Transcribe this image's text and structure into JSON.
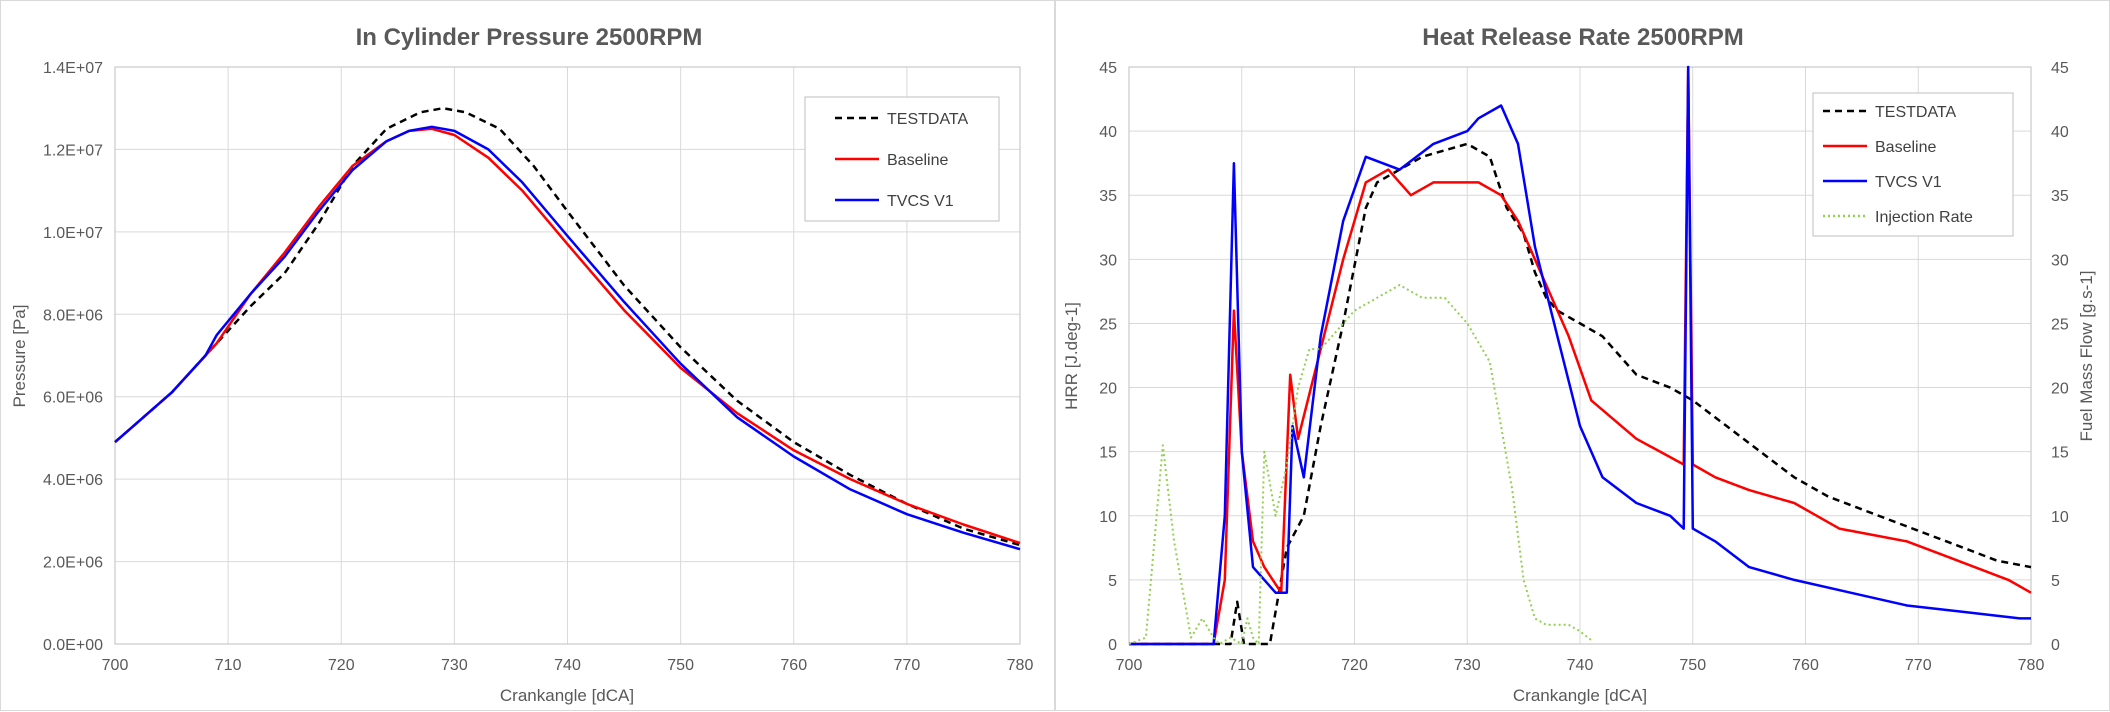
{
  "chart_data": [
    {
      "type": "line",
      "title": "In Cylinder Pressure 2500RPM",
      "xlabel": "Crankangle [dCA]",
      "ylabel": "Pressure [Pa]",
      "xlim": [
        700,
        780
      ],
      "ylim": [
        0,
        14000000
      ],
      "x_ticks": [
        "700",
        "710",
        "720",
        "730",
        "740",
        "750",
        "760",
        "770",
        "780"
      ],
      "y_ticks": [
        "0.0E+00",
        "2.0E+06",
        "4.0E+06",
        "6.0E+06",
        "8.0E+06",
        "1.0E+07",
        "1.2E+07",
        "1.4E+07"
      ],
      "grid": true,
      "legend_position": "top-right",
      "series": [
        {
          "name": "TESTDATA",
          "color": "#000000",
          "style": "dashed",
          "x": [
            700,
            705,
            708,
            709,
            712,
            715,
            718,
            721,
            724,
            727,
            729,
            731,
            734,
            737,
            740,
            745,
            750,
            755,
            760,
            765,
            770,
            775,
            780
          ],
          "y": [
            4900000,
            6100000,
            7000000,
            7300000,
            8200000,
            9000000,
            10200000,
            11600000,
            12500000,
            12900000,
            13000000,
            12900000,
            12500000,
            11600000,
            10500000,
            8700000,
            7200000,
            5900000,
            4900000,
            4100000,
            3400000,
            2800000,
            2400000
          ]
        },
        {
          "name": "Baseline",
          "color": "#ff0000",
          "style": "solid",
          "x": [
            700,
            705,
            708,
            709,
            712,
            715,
            718,
            721,
            724,
            726,
            728,
            730,
            733,
            736,
            740,
            745,
            750,
            755,
            760,
            765,
            770,
            775,
            780
          ],
          "y": [
            4900000,
            6100000,
            7000000,
            7300000,
            8500000,
            9500000,
            10600000,
            11600000,
            12200000,
            12450000,
            12500000,
            12350000,
            11800000,
            11000000,
            9700000,
            8100000,
            6700000,
            5600000,
            4700000,
            4000000,
            3400000,
            2900000,
            2450000
          ]
        },
        {
          "name": "TVCS V1",
          "color": "#0000ff",
          "style": "solid",
          "x": [
            700,
            705,
            708,
            709,
            712,
            715,
            718,
            721,
            724,
            726,
            728,
            730,
            733,
            736,
            740,
            745,
            750,
            755,
            760,
            765,
            770,
            775,
            780
          ],
          "y": [
            4900000,
            6100000,
            7000000,
            7500000,
            8500000,
            9400000,
            10500000,
            11500000,
            12200000,
            12450000,
            12550000,
            12450000,
            12000000,
            11200000,
            9900000,
            8300000,
            6800000,
            5500000,
            4550000,
            3750000,
            3150000,
            2700000,
            2300000
          ]
        }
      ]
    },
    {
      "type": "line",
      "title": "Heat Release Rate 2500RPM",
      "xlabel": "Crankangle [dCA]",
      "ylabel": "HRR [J.deg-1]",
      "y2label": "Fuel Mass Flow [g.s-1]",
      "xlim": [
        700,
        780
      ],
      "ylim": [
        0,
        45
      ],
      "y2lim": [
        0,
        45
      ],
      "x_ticks": [
        "700",
        "710",
        "720",
        "730",
        "740",
        "750",
        "760",
        "770",
        "780"
      ],
      "y_ticks": [
        "0",
        "5",
        "10",
        "15",
        "20",
        "25",
        "30",
        "35",
        "40",
        "45"
      ],
      "y2_ticks": [
        "0",
        "5",
        "10",
        "15",
        "20",
        "25",
        "30",
        "35",
        "40",
        "45"
      ],
      "grid": true,
      "legend_position": "top-right",
      "series": [
        {
          "name": "TESTDATA",
          "color": "#000000",
          "style": "dashed",
          "x": [
            700,
            709,
            709.6,
            710.2,
            711,
            712.5,
            714,
            715.5,
            717,
            719,
            721,
            722,
            724,
            726,
            728,
            730,
            732,
            733.5,
            735,
            736,
            737,
            738,
            740,
            742,
            745,
            748,
            750,
            753,
            756,
            759,
            762,
            765,
            768,
            771,
            774,
            777,
            780
          ],
          "y": [
            0,
            0,
            3.3,
            0,
            0,
            0,
            7.5,
            10,
            17,
            25,
            34,
            36,
            37,
            38,
            38.5,
            39,
            38,
            34,
            32,
            29,
            27,
            26,
            25,
            24,
            21,
            20,
            19,
            17,
            15,
            13,
            11.5,
            10.5,
            9.5,
            8.5,
            7.5,
            6.5,
            6
          ]
        },
        {
          "name": "Baseline",
          "color": "#ff0000",
          "style": "solid",
          "x": [
            700,
            707.5,
            708.5,
            709.3,
            710,
            711,
            712,
            713.5,
            714.3,
            715,
            717,
            719,
            721,
            723,
            725,
            727,
            729,
            731,
            733,
            734.5,
            735.5,
            737,
            739,
            741,
            745,
            749.2,
            749.6,
            750,
            752,
            755,
            759,
            761,
            763,
            766,
            769,
            772,
            775,
            778,
            780
          ],
          "y": [
            0,
            0,
            5,
            26,
            15,
            8,
            6,
            4,
            21,
            16,
            23,
            30,
            36,
            37,
            35,
            36,
            36,
            36,
            35,
            33,
            31,
            28,
            24,
            19,
            16,
            14,
            45,
            14,
            13,
            12,
            11,
            10,
            9,
            8.5,
            8,
            7,
            6,
            5,
            4
          ]
        },
        {
          "name": "TVCS V1",
          "color": "#0000ff",
          "style": "solid",
          "x": [
            700,
            707.5,
            708.5,
            709.3,
            710,
            711,
            713,
            714,
            714.5,
            715.5,
            717,
            719,
            721,
            724,
            727,
            730,
            731,
            733,
            734.5,
            736,
            738,
            740,
            742,
            745,
            748,
            749.2,
            749.6,
            750,
            752,
            755,
            759,
            764,
            769,
            774,
            779,
            780
          ],
          "y": [
            0,
            0,
            10,
            37.5,
            15,
            6,
            4,
            4,
            17,
            13,
            24,
            33,
            38,
            37,
            39,
            40,
            41,
            42,
            39,
            31,
            24,
            17,
            13,
            11,
            10,
            9,
            45,
            9,
            8,
            6,
            5,
            4,
            3,
            2.5,
            2,
            2
          ]
        },
        {
          "name": "Injection Rate",
          "color": "#92d050",
          "style": "dotted",
          "axis": "y2",
          "x": [
            700,
            701.5,
            703,
            704,
            705.5,
            706.5,
            707.5,
            708,
            709,
            710,
            710.5,
            711,
            711.5,
            712,
            713,
            714,
            715,
            716,
            717,
            718,
            720,
            722,
            724,
            726,
            728,
            730,
            732,
            734,
            735,
            736,
            737,
            738,
            739,
            740,
            741
          ],
          "y": [
            0,
            0.5,
            15.5,
            8,
            0.5,
            2,
            0.5,
            0,
            0.5,
            0,
            2,
            0.5,
            0,
            15,
            10,
            14,
            20,
            23,
            23,
            24,
            26,
            27,
            28,
            27,
            27,
            25,
            22,
            12,
            5,
            2,
            1.5,
            1.5,
            1.5,
            1,
            0.3
          ]
        }
      ]
    }
  ]
}
